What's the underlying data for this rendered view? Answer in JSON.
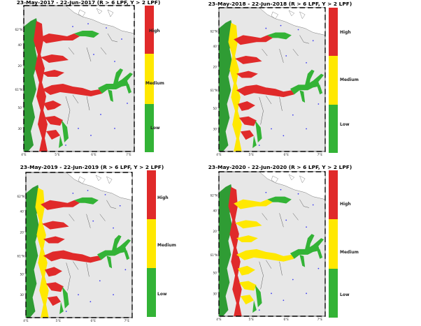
{
  "colors": {
    "high": "#e02a2a",
    "medium": "#ffe800",
    "low": "#33b336",
    "land": "#e7e7e7",
    "sea_coast": "#2f9c34",
    "site": "#3a3af0"
  },
  "legend": {
    "high": "High",
    "medium": "Medium",
    "low": "Low"
  },
  "axes": {
    "lat_62": "62°N",
    "lat_61": "61°N",
    "lat_m40": "40'",
    "lat_m20": "20'",
    "lat_m50": "50'",
    "lat_m30": "30'",
    "lat_m10": "10'",
    "lon_4": "4°E",
    "lon_5": "5°E",
    "lon_6": "6°E",
    "lon_7": "7°E"
  },
  "panels": [
    {
      "title": "23-May-2017 - 22-Jun-2017 (R > 6 LPF, Y > 2 LPF)",
      "fjord_color": "high",
      "inner_color": "low",
      "coast_color": "high"
    },
    {
      "title": "23-May-2018 - 22-Jun-2018 (R > 6 LPF, Y > 2 LPF)",
      "fjord_color": "high",
      "inner_color": "low",
      "coast_color": "medium"
    },
    {
      "title": "23-May-2019 - 22-Jun-2019 (R > 6 LPF, Y > 2 LPF)",
      "fjord_color": "high",
      "inner_color": "low",
      "coast_color": "medium"
    },
    {
      "title": "23-May-2020 - 22-Jun-2020 (R > 6 LPF, Y > 2 LPF)",
      "fjord_color": "medium",
      "inner_color": "low",
      "coast_color": "high"
    }
  ]
}
